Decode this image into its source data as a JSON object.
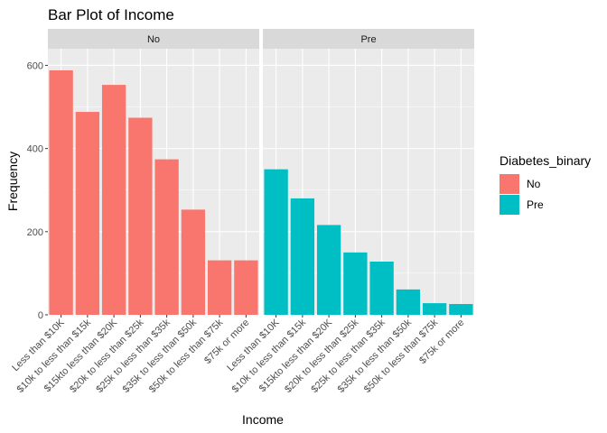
{
  "chart_data": {
    "type": "bar",
    "title": "Bar Plot of Income",
    "xlabel": "Income",
    "ylabel": "Frequency",
    "ylim": [
      0,
      640
    ],
    "yticks": [
      0,
      200,
      400,
      600
    ],
    "categories": [
      "Less than $10K",
      "$10k to less than $15k",
      "$15kto less than $20K",
      "$20k to less than $25k",
      "$25k to less than $35k",
      "$35k to less than $50k",
      "$50k to less than $75k",
      "$75k or more"
    ],
    "facets": [
      {
        "label": "No",
        "fill_key": "No",
        "values": [
          588,
          488,
          553,
          474,
          374,
          253,
          131,
          131
        ]
      },
      {
        "label": "Pre",
        "fill_key": "Pre",
        "values": [
          350,
          280,
          216,
          150,
          128,
          61,
          28,
          26
        ]
      }
    ],
    "legend": {
      "title": "Diabetes_binary",
      "position": "right",
      "entries": [
        {
          "label": "No",
          "color": "#F8766D"
        },
        {
          "label": "Pre",
          "color": "#00BFC4"
        }
      ]
    },
    "grid": true,
    "panel_background": "#EBEBEB",
    "strip_background": "#D9D9D9"
  }
}
